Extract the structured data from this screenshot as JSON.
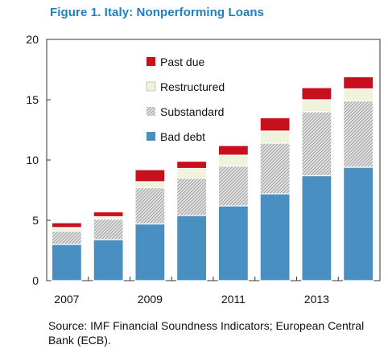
{
  "figure_title": "Figure 1. Italy: Nonperforming Loans",
  "source_note": "Source: IMF Financial Soundness Indicators; European Central Bank (ECB).",
  "colors": {
    "bad_debt": "#4a8fc1",
    "substandard": "#cfcfcf",
    "restructured": "#f0f3dc",
    "past_due": "#c8101c",
    "title": "#1f7fbf"
  },
  "chart_data": {
    "type": "bar",
    "stacked": true,
    "title": "Figure 1. Italy: Nonperforming Loans",
    "xlabel": "",
    "ylabel": "",
    "ylim": [
      0,
      20
    ],
    "yticks": [
      0,
      5,
      10,
      15,
      20
    ],
    "categories": [
      "2007",
      "2008",
      "2009",
      "2010",
      "2011",
      "2012",
      "2013",
      "2014"
    ],
    "xtick_labels": [
      "2007",
      "",
      "2009",
      "",
      "2011",
      "",
      "2013",
      ""
    ],
    "grid": false,
    "legend_placement": "top-left",
    "series": [
      {
        "name": "Bad debt",
        "values": [
          3.0,
          3.4,
          4.7,
          5.4,
          6.2,
          7.2,
          8.7,
          9.4
        ]
      },
      {
        "name": "Substandard",
        "values": [
          1.1,
          1.7,
          3.0,
          3.1,
          3.3,
          4.2,
          5.3,
          5.5
        ]
      },
      {
        "name": "Restructured",
        "values": [
          0.3,
          0.2,
          0.5,
          0.8,
          0.9,
          1.0,
          1.0,
          1.0
        ]
      },
      {
        "name": "Past due",
        "values": [
          0.4,
          0.4,
          1.0,
          0.6,
          0.8,
          1.1,
          1.0,
          1.0
        ]
      }
    ],
    "legend_order": [
      "Past due",
      "Restructured",
      "Substandard",
      "Bad debt"
    ]
  }
}
